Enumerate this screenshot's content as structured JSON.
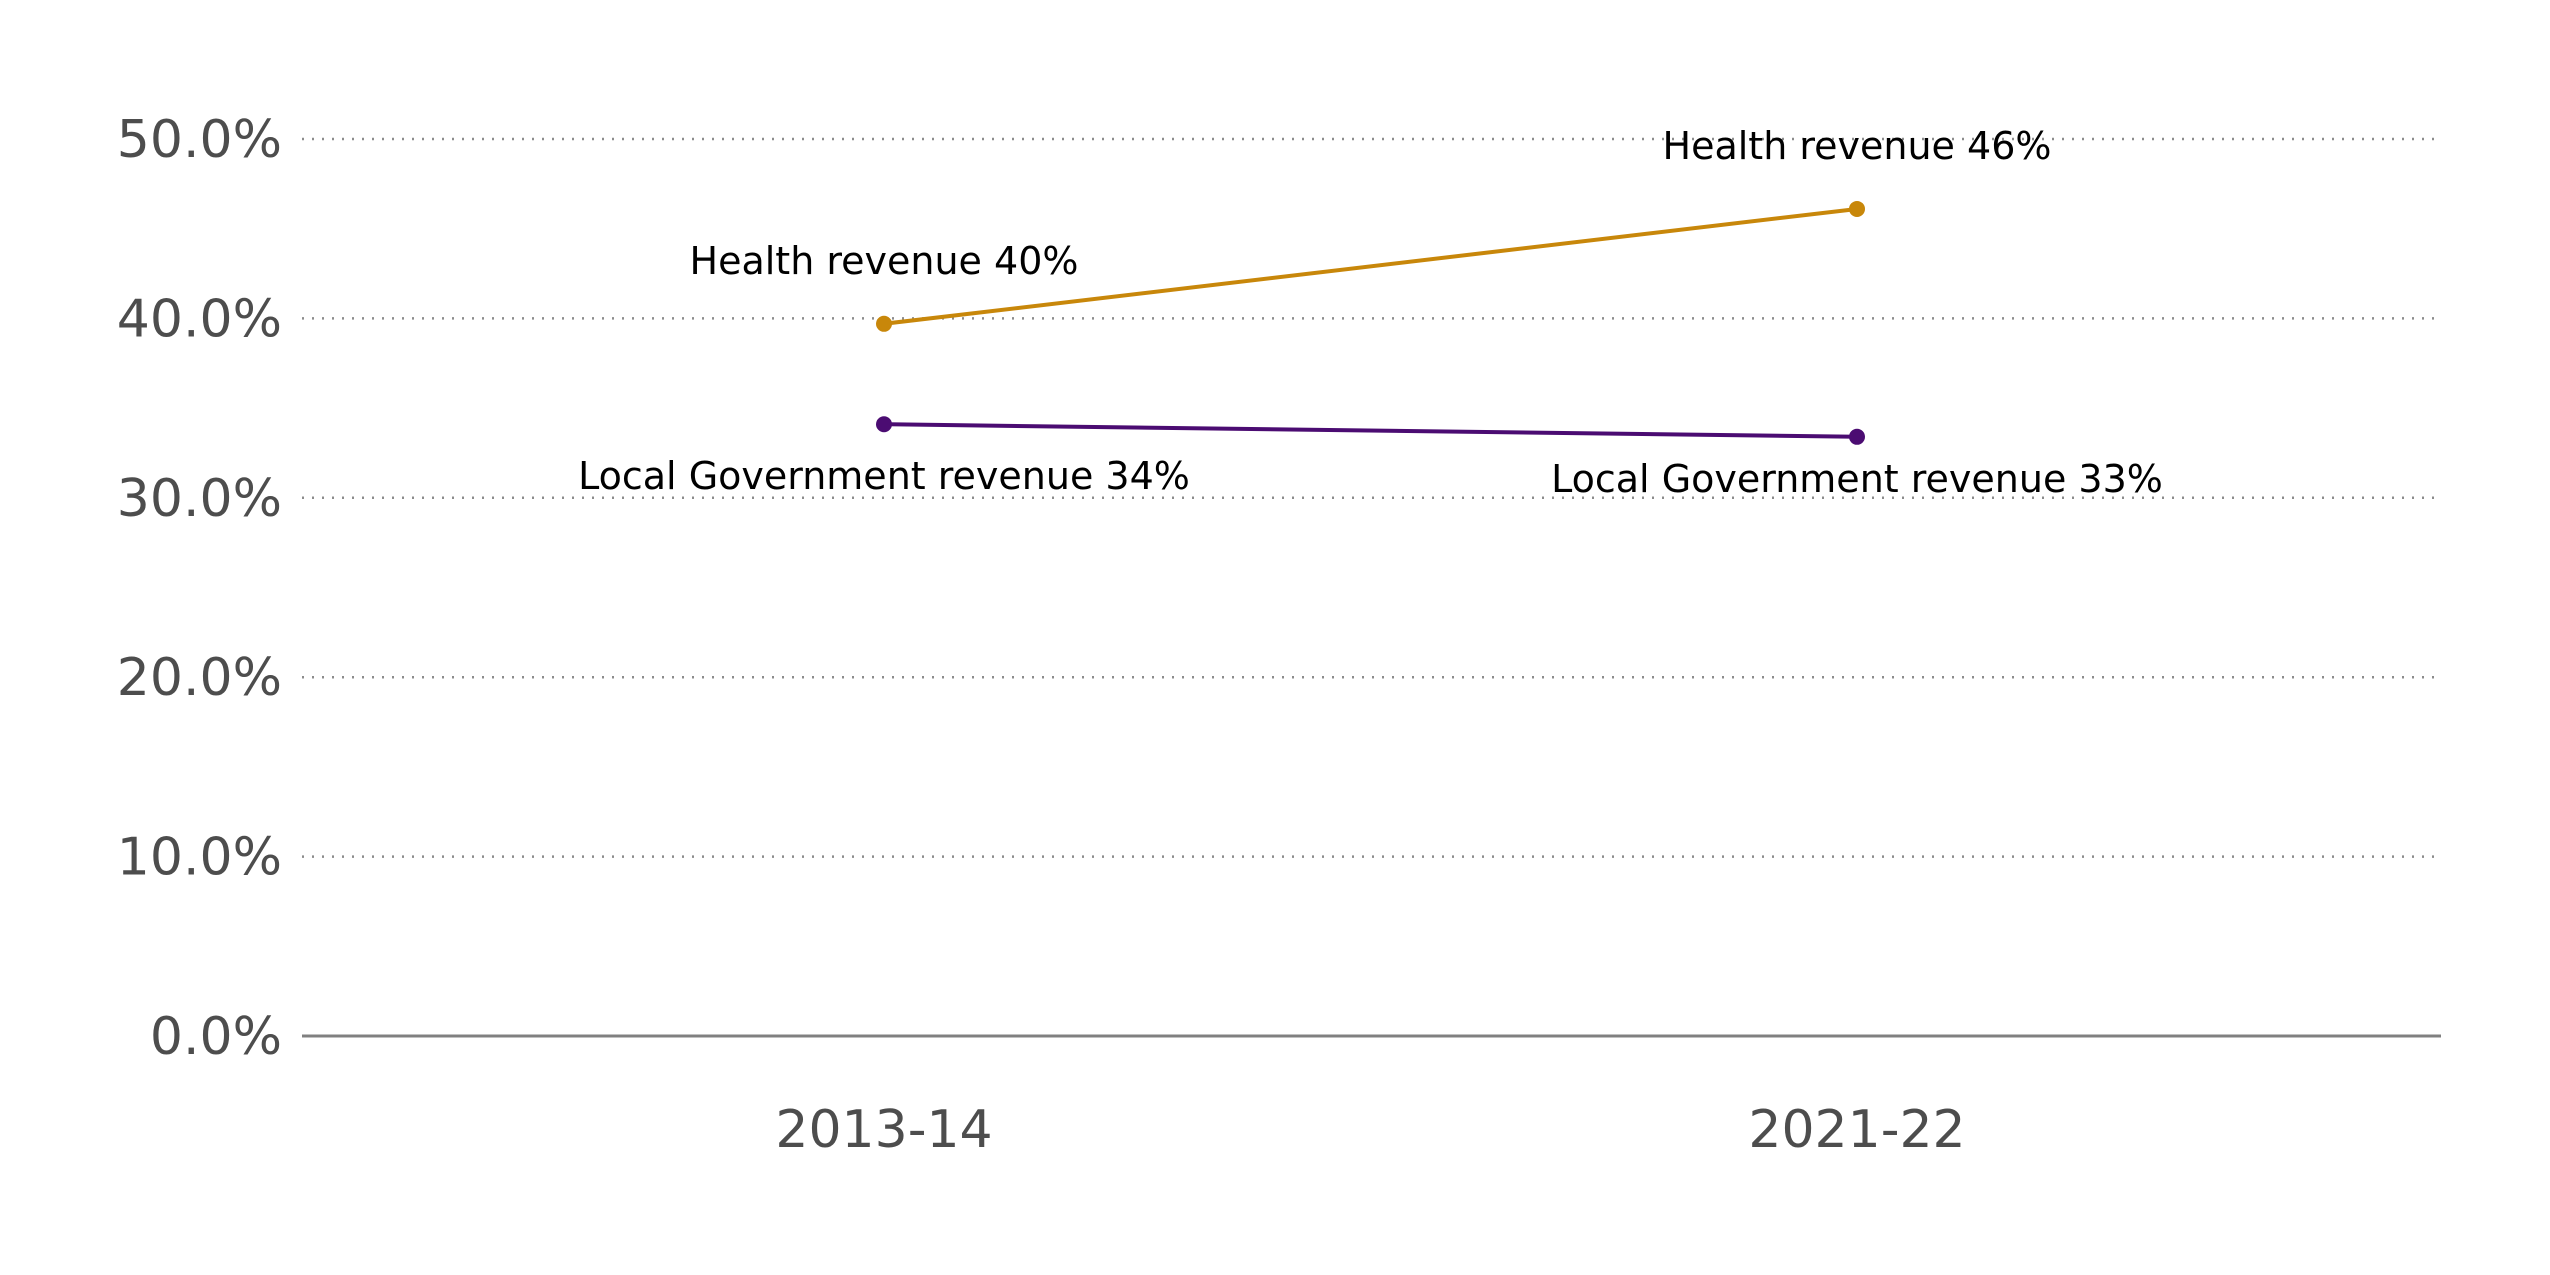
{
  "chart_data": {
    "type": "line",
    "title": "",
    "xlabel": "",
    "ylabel": "",
    "categories": [
      "2013-14",
      "2021-22"
    ],
    "ylim": [
      0,
      50
    ],
    "yticks": [
      "0.0%",
      "10.0%",
      "20.0%",
      "30.0%",
      "40.0%",
      "50.0%"
    ],
    "ytick_values": [
      0,
      10,
      20,
      30,
      40,
      50
    ],
    "grid": "horizontal dotted",
    "legend": "none",
    "series": [
      {
        "color": "#C8870A",
        "values": [
          39.7,
          46.1
        ],
        "labels": [
          "Health revenue 40%",
          "Health revenue 46%"
        ]
      },
      {
        "color": "#4B0C72",
        "values": [
          34.1,
          33.4
        ],
        "labels": [
          "Local Government revenue 34%",
          "Local Government revenue 33%"
        ]
      }
    ]
  }
}
